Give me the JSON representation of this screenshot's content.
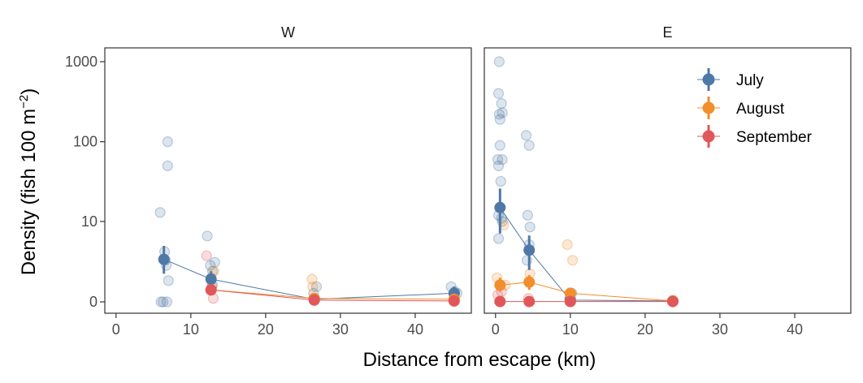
{
  "chart_data": {
    "type": "scatter",
    "xlabel": "Distance from escape (km)",
    "ylabel": "Density (fish 100 m",
    "ylabel_sup": "−2",
    "ylabel_close": ")",
    "y_scale": "pseudo-log",
    "y_ticks": [
      0,
      10,
      100,
      1000
    ],
    "y_tick_labels": [
      "0",
      "10",
      "100",
      "1000"
    ],
    "ylim": [
      -0.5,
      1600
    ],
    "x_ticks": [
      0,
      10,
      20,
      30,
      40
    ],
    "x_tick_labels": [
      "0",
      "10",
      "20",
      "30",
      "40"
    ],
    "xlim": [
      -1.5,
      47.5
    ],
    "grid": false,
    "legend_position": "top-right",
    "colors": {
      "July": "#4E79A7",
      "August": "#F28E2B",
      "September": "#E15759"
    },
    "series": [
      {
        "name": "July",
        "color": "#4E79A7"
      },
      {
        "name": "August",
        "color": "#F28E2B"
      },
      {
        "name": "September",
        "color": "#E15759"
      }
    ],
    "panels": [
      {
        "strip": "W",
        "raw": {
          "July": [
            [
              5.9,
              13
            ],
            [
              6.3,
              0
            ],
            [
              6.5,
              4
            ],
            [
              6.6,
              3
            ],
            [
              6.7,
              2.5
            ],
            [
              6.9,
              50
            ],
            [
              6.9,
              100
            ],
            [
              7.0,
              1.3
            ],
            [
              6.0,
              0
            ],
            [
              6.8,
              0
            ],
            [
              12.2,
              6.5
            ],
            [
              12.6,
              2.5
            ],
            [
              12.9,
              2
            ],
            [
              13.2,
              2.8
            ],
            [
              12.9,
              1
            ],
            [
              26.4,
              0.5
            ],
            [
              26.8,
              0.9
            ],
            [
              44.8,
              0.9
            ],
            [
              45.3,
              0.6
            ],
            [
              45.6,
              0.5
            ]
          ],
          "August": [
            [
              13.1,
              2
            ],
            [
              12.7,
              1.5
            ],
            [
              26.2,
              1.4
            ],
            [
              26.3,
              0.9
            ],
            [
              45.2,
              0.3
            ]
          ],
          "September": [
            [
              12.1,
              3.5
            ],
            [
              12.8,
              0.9
            ],
            [
              13.0,
              0.2
            ]
          ]
        },
        "means": {
          "July": {
            "x": [
              6.4,
              12.7,
              26.5,
              45.2
            ],
            "y": [
              3.1,
              1.4,
              0.15,
              0.5
            ],
            "lo": [
              1.8,
              0.9,
              0.05,
              0.2
            ],
            "hi": [
              4.8,
              2.0,
              0.3,
              0.9
            ]
          },
          "August": {
            "x": [
              12.7,
              26.5,
              45.2
            ],
            "y": [
              0.7,
              0.2,
              0.15
            ],
            "lo": [
              0.4,
              0.05,
              0.05
            ],
            "hi": [
              1.0,
              0.35,
              0.3
            ]
          },
          "September": {
            "x": [
              12.7,
              26.5,
              45.2
            ],
            "y": [
              0.7,
              0.1,
              0.05
            ],
            "lo": [
              0.4,
              0.0,
              0.0
            ],
            "hi": [
              1.0,
              0.2,
              0.1
            ]
          }
        }
      },
      {
        "strip": "E",
        "raw": {
          "July": [
            [
              0.5,
              1000
            ],
            [
              0.4,
              400
            ],
            [
              0.8,
              300
            ],
            [
              0.9,
              230
            ],
            [
              0.5,
              220
            ],
            [
              0.6,
              190
            ],
            [
              0.3,
              60
            ],
            [
              0.4,
              50
            ],
            [
              0.9,
              60
            ],
            [
              0.6,
              90
            ],
            [
              0.7,
              32
            ],
            [
              0.4,
              12
            ],
            [
              0.8,
              11
            ],
            [
              0.9,
              10
            ],
            [
              0.4,
              6
            ],
            [
              4.1,
              120
            ],
            [
              4.5,
              90
            ],
            [
              4.3,
              12
            ],
            [
              4.6,
              8.5
            ],
            [
              4.5,
              5
            ],
            [
              4.2,
              3
            ],
            [
              9.9,
              0.2
            ],
            [
              10.2,
              0.5
            ]
          ],
          "August": [
            [
              0.2,
              1.5
            ],
            [
              1.1,
              9
            ],
            [
              1.3,
              1
            ],
            [
              4.6,
              1.8
            ],
            [
              9.6,
              5
            ],
            [
              10.3,
              3
            ]
          ],
          "September": [
            [
              0.3,
              0.4
            ],
            [
              0.8,
              0.6
            ],
            [
              4.4,
              0.2
            ]
          ]
        },
        "means": {
          "July": {
            "x": [
              0.6,
              4.5,
              10.0,
              23.7
            ],
            "y": [
              15,
              4.2,
              0.1,
              0.05
            ],
            "lo": [
              7,
              2.1,
              0.0,
              0.0
            ],
            "hi": [
              26,
              6.6,
              0.4,
              0.1
            ]
          },
          "August": {
            "x": [
              0.6,
              4.5,
              10.0,
              23.7
            ],
            "y": [
              1.0,
              1.2,
              0.5,
              0.05
            ],
            "lo": [
              0.6,
              0.7,
              0.2,
              0.0
            ],
            "hi": [
              1.5,
              1.7,
              0.8,
              0.1
            ]
          },
          "September": {
            "x": [
              0.6,
              4.5,
              10.0,
              23.7
            ],
            "y": [
              0.02,
              0.02,
              0.02,
              0.02
            ],
            "lo": [
              0.0,
              0.0,
              0.0,
              0.0
            ],
            "hi": [
              0.1,
              0.1,
              0.1,
              0.1
            ]
          }
        }
      }
    ]
  }
}
